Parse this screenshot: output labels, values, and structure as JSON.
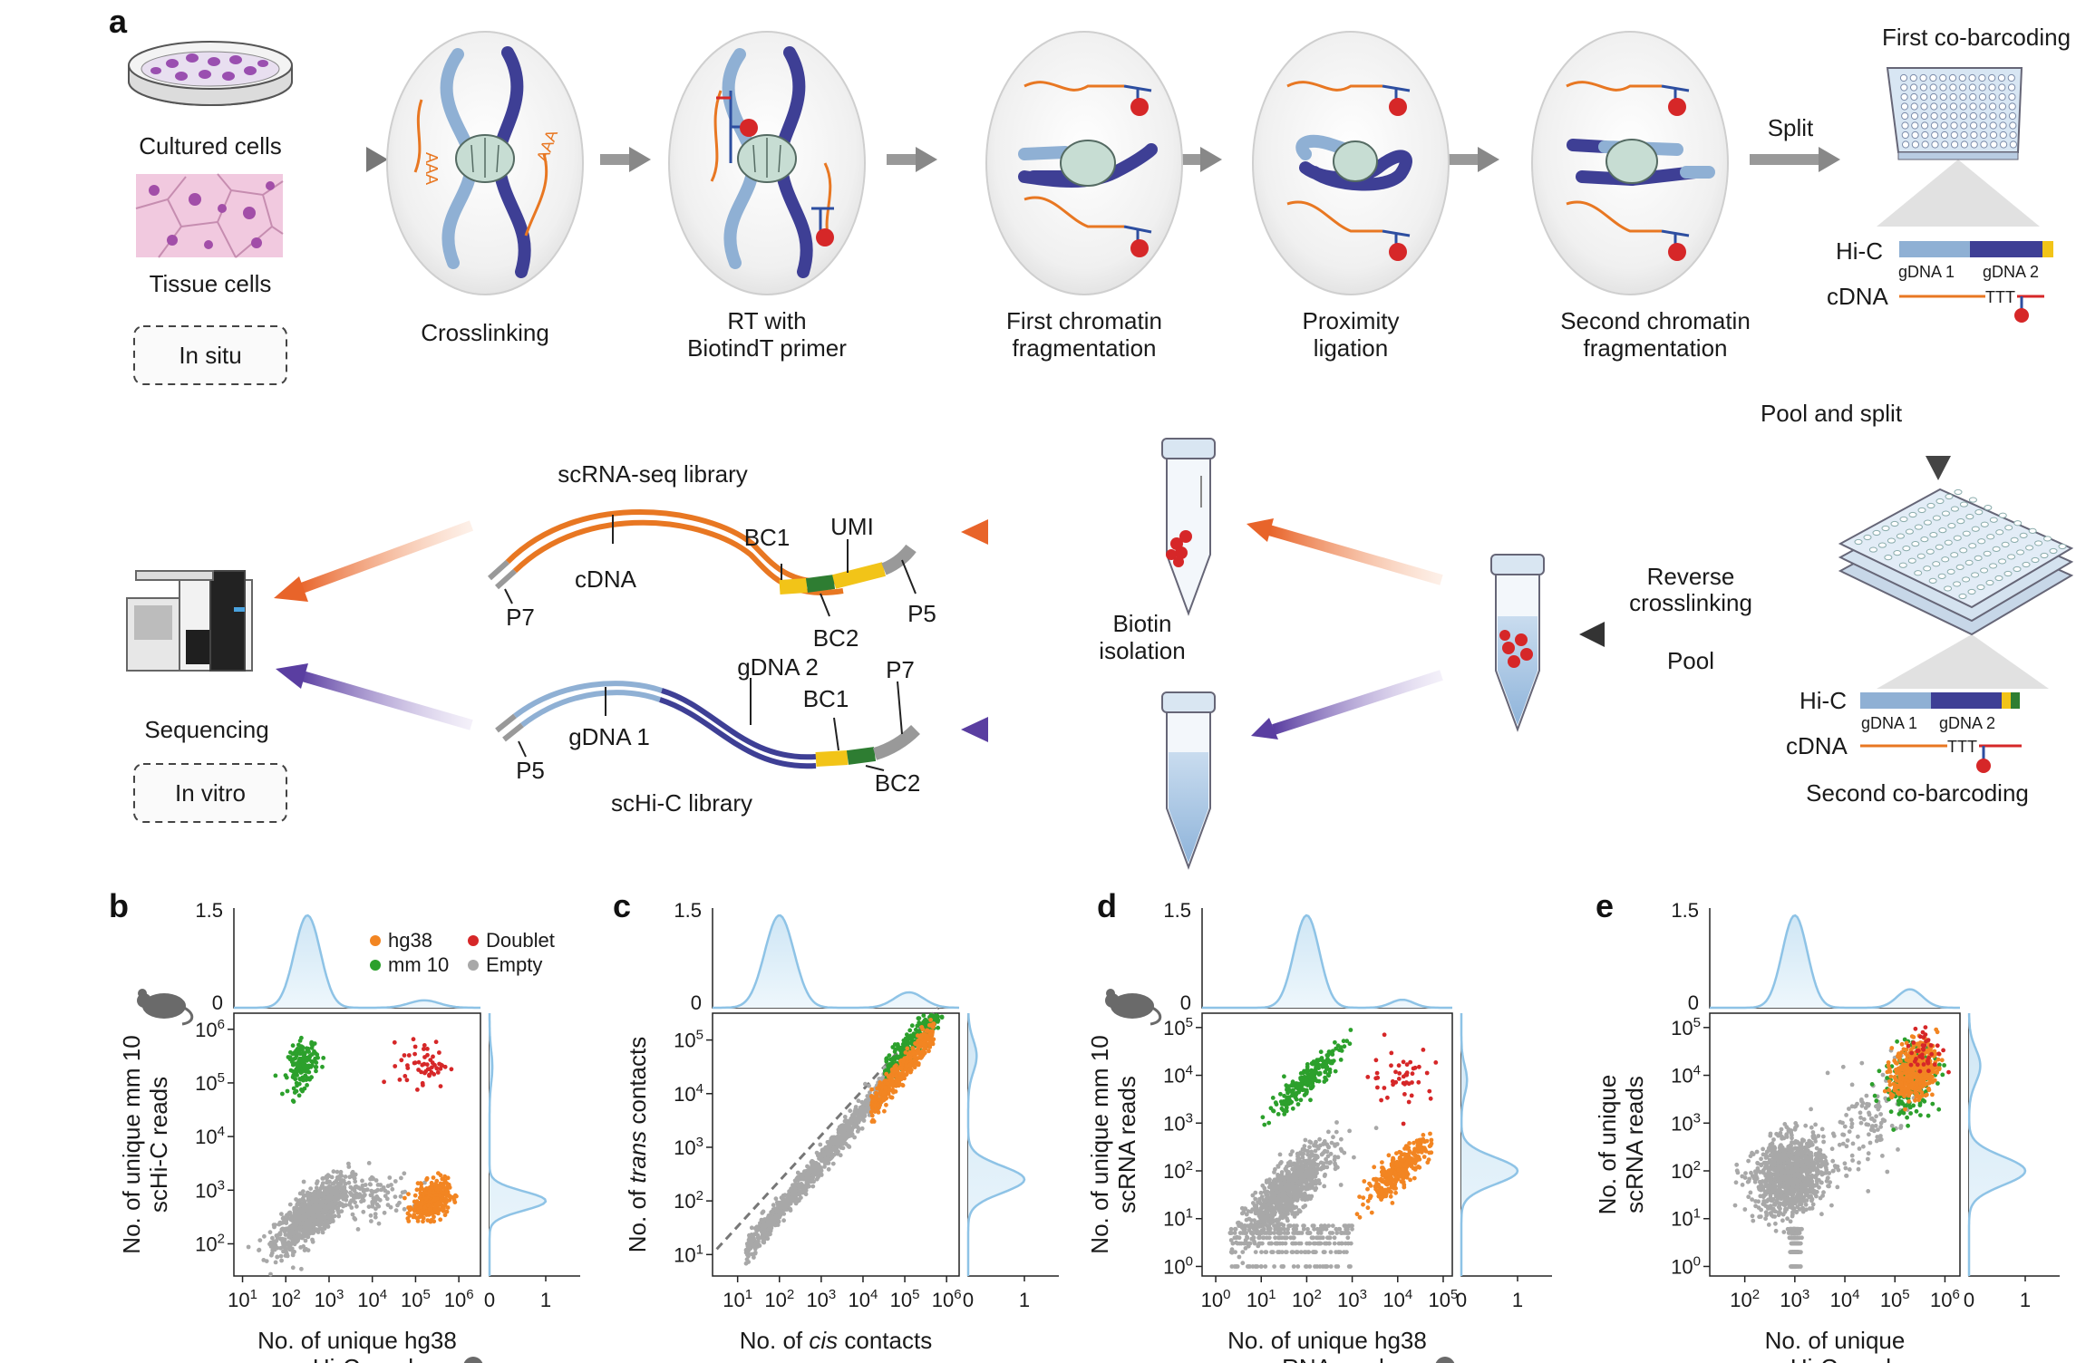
{
  "panel_a": {
    "letter": "a",
    "cultured_cells": "Cultured cells",
    "tissue_cells": "Tissue cells",
    "in_situ": "In situ",
    "steps": {
      "crosslinking": "Crosslinking",
      "rt_line1": "RT with",
      "rt_line2": "BiotindT primer",
      "frag1_line1": "First chromatin",
      "frag1_line2": "fragmentation",
      "lig_line1": "Proximity",
      "lig_line2": "ligation",
      "frag2_line1": "Second chromatin",
      "frag2_line2": "fragmentation"
    },
    "polyA": "AAA",
    "oligo_t": "TTT",
    "split": "Split",
    "first_cobarcoding": "First co-barcoding",
    "hic": "Hi-C",
    "cdna": "cDNA",
    "gdna1": "gDNA 1",
    "gdna2": "gDNA 2",
    "pool_and_split": "Pool and split",
    "reverse_line1": "Reverse",
    "reverse_line2": "crosslinking",
    "pool": "Pool",
    "second_cobarcoding": "Second co-barcoding",
    "biotin_line1": "Biotin",
    "biotin_line2": "isolation",
    "scrna_library": "scRNA-seq library",
    "schic_library": "scHi-C library",
    "bc1": "BC1",
    "bc2": "BC2",
    "umi": "UMI",
    "p5": "P5",
    "p7": "P7",
    "cdna_lib": "cDNA",
    "gdna1_lib": "gDNA 1",
    "gdna2_lib": "gDNA 2",
    "sequencing": "Sequencing",
    "in_vitro": "In vitro"
  },
  "colors": {
    "hg38": "#f28522",
    "mm10": "#2ca02c",
    "doublet": "#d62728",
    "empty": "#a8a8a8",
    "density": "#8ec3e6",
    "orange": "#e87722",
    "purple": "#5a3ea1",
    "light_chrom": "#8fb0d4",
    "dark_chrom": "#3e3f95"
  },
  "legend": {
    "hg38": "hg38",
    "doublet": "Doublet",
    "mm10": "mm 10",
    "empty": "Empty"
  },
  "chart_data": [
    {
      "panel": "b",
      "type": "scatter",
      "xlabel_line1": "No. of unique hg38",
      "xlabel_line2": "scHi-C reads",
      "ylabel_line1": "No. of unique mm 10",
      "ylabel_line2": "scHi-C reads",
      "x_scale": "log10",
      "y_scale": "log10",
      "xlim_log10": [
        0.8,
        6.5
      ],
      "ylim_log10": [
        1.4,
        6.3
      ],
      "x_ticks": [
        "10^1",
        "10^2",
        "10^3",
        "10^4",
        "10^5",
        "10^6"
      ],
      "y_ticks": [
        "10^2",
        "10^3",
        "10^4",
        "10^5",
        "10^6"
      ],
      "top_density_ticks": [
        "0",
        "1.5"
      ],
      "right_density_ticks": [
        "0",
        "1"
      ],
      "clusters": [
        {
          "group": "empty",
          "n": 900,
          "cx_log10": 2.6,
          "cy_log10": 2.55,
          "sx": 0.42,
          "sy": 0.33,
          "rho": 0.75
        },
        {
          "group": "empty",
          "n": 120,
          "cx_log10": 3.9,
          "cy_log10": 2.9,
          "sx": 0.5,
          "sy": 0.2,
          "rho": 0
        },
        {
          "group": "mm10",
          "n": 160,
          "cx_log10": 2.4,
          "cy_log10": 5.35,
          "sx": 0.17,
          "sy": 0.22,
          "rho": 0.3
        },
        {
          "group": "hg38",
          "n": 420,
          "cx_log10": 5.35,
          "cy_log10": 2.8,
          "sx": 0.2,
          "sy": 0.17,
          "rho": 0.3
        },
        {
          "group": "doublet",
          "n": 55,
          "cx_log10": 5.2,
          "cy_log10": 5.35,
          "sx": 0.28,
          "sy": 0.22,
          "rho": 0
        }
      ],
      "top_density_peaks": [
        {
          "pos_log10": 2.5,
          "height": 1.5,
          "sd": 0.3
        },
        {
          "pos_log10": 5.2,
          "height": 0.12,
          "sd": 0.35
        }
      ],
      "right_density_peaks": [
        {
          "pos_log10": 2.8,
          "height": 1.0,
          "sd": 0.18
        },
        {
          "pos_log10": 5.3,
          "height": 0.05,
          "sd": 0.3
        }
      ],
      "icons": {
        "y": "mouse",
        "x": "baby"
      }
    },
    {
      "panel": "c",
      "type": "scatter",
      "xlabel_pre": "No. of ",
      "xlabel_ital": "cis",
      "xlabel_post": " contacts",
      "ylabel_pre": "No. of ",
      "ylabel_ital": "trans",
      "ylabel_post": " contacts",
      "x_scale": "log10",
      "y_scale": "log10",
      "xlim_log10": [
        0.4,
        6.3
      ],
      "ylim_log10": [
        0.6,
        5.5
      ],
      "x_ticks": [
        "10^1",
        "10^2",
        "10^3",
        "10^4",
        "10^5",
        "10^6"
      ],
      "y_ticks": [
        "10^1",
        "10^2",
        "10^3",
        "10^4",
        "10^5"
      ],
      "top_density_ticks": [
        "0",
        "1.5"
      ],
      "right_density_ticks": [
        "0",
        "1"
      ],
      "diagonal": {
        "x_log10": [
          0.5,
          5.8
        ],
        "y_log10": [
          1.1,
          5.6
        ],
        "style": "dashed"
      },
      "clusters": [
        {
          "group": "empty",
          "n": 900,
          "diag": true,
          "x_range_log10": [
            1.2,
            4.6
          ],
          "slope": 0.93,
          "intercept": -0.05,
          "sd": 0.12
        },
        {
          "group": "mm10",
          "n": 260,
          "diag": true,
          "x_range_log10": [
            4.5,
            5.9
          ],
          "slope": 0.93,
          "intercept": 0.15,
          "sd": 0.14
        },
        {
          "group": "hg38",
          "n": 380,
          "diag": true,
          "x_range_log10": [
            4.2,
            5.7
          ],
          "slope": 0.93,
          "intercept": -0.15,
          "sd": 0.13
        }
      ],
      "top_density_peaks": [
        {
          "pos_log10": 2.0,
          "height": 1.5,
          "sd": 0.35
        },
        {
          "pos_log10": 5.1,
          "height": 0.25,
          "sd": 0.35
        }
      ],
      "right_density_peaks": [
        {
          "pos_log10": 2.4,
          "height": 1.0,
          "sd": 0.25
        },
        {
          "pos_log10": 4.7,
          "height": 0.15,
          "sd": 0.3
        }
      ]
    },
    {
      "panel": "d",
      "type": "scatter",
      "xlabel_line1": "No. of unique hg38",
      "xlabel_line2": "scRNA reads",
      "ylabel_line1": "No. of unique mm 10",
      "ylabel_line2": "scRNA reads",
      "x_scale": "log10",
      "y_scale": "log10",
      "xlim_log10": [
        -0.3,
        5.2
      ],
      "ylim_log10": [
        -0.2,
        5.3
      ],
      "x_ticks": [
        "10^0",
        "10^1",
        "10^2",
        "10^3",
        "10^4",
        "10^5"
      ],
      "y_ticks": [
        "10^0",
        "10^1",
        "10^2",
        "10^3",
        "10^4",
        "10^5"
      ],
      "top_density_ticks": [
        "0",
        "1.5"
      ],
      "right_density_ticks": [
        "0",
        "1"
      ],
      "clusters": [
        {
          "group": "empty",
          "n": 900,
          "cx_log10": 1.6,
          "cy_log10": 1.6,
          "sx": 0.45,
          "sy": 0.45,
          "rho": 0.8
        },
        {
          "group": "empty_grid",
          "n": 300,
          "x_range_log10": [
            0.3,
            3.0
          ],
          "y_values_log10": [
            0,
            0.3,
            0.48,
            0.6,
            0.7,
            0.78,
            0.85
          ]
        },
        {
          "group": "mm10",
          "n": 220,
          "cx_log10": 2.0,
          "cy_log10": 3.9,
          "sx": 0.4,
          "sy": 0.38,
          "rho": 0.9
        },
        {
          "group": "hg38",
          "n": 320,
          "cx_log10": 4.0,
          "cy_log10": 2.0,
          "sx": 0.35,
          "sy": 0.33,
          "rho": 0.85
        },
        {
          "group": "doublet",
          "n": 45,
          "cx_log10": 4.1,
          "cy_log10": 4.0,
          "sx": 0.35,
          "sy": 0.3,
          "rho": 0
        }
      ],
      "top_density_peaks": [
        {
          "pos_log10": 2.0,
          "height": 1.5,
          "sd": 0.28
        },
        {
          "pos_log10": 4.1,
          "height": 0.13,
          "sd": 0.25
        }
      ],
      "right_density_peaks": [
        {
          "pos_log10": 2.0,
          "height": 1.0,
          "sd": 0.28
        },
        {
          "pos_log10": 3.9,
          "height": 0.1,
          "sd": 0.3
        }
      ],
      "icons": {
        "y": "mouse",
        "x": "baby"
      }
    },
    {
      "panel": "e",
      "type": "scatter",
      "xlabel_line1": "No. of unique",
      "xlabel_line2": "scHi-C reads",
      "ylabel_line1": "No. of unique",
      "ylabel_line2": "scRNA reads",
      "x_scale": "log10",
      "y_scale": "log10",
      "xlim_log10": [
        1.3,
        6.3
      ],
      "ylim_log10": [
        -0.2,
        5.3
      ],
      "x_ticks": [
        "10^2",
        "10^3",
        "10^4",
        "10^5",
        "10^6"
      ],
      "y_ticks": [
        "10^0",
        "10^1",
        "10^2",
        "10^3",
        "10^4",
        "10^5"
      ],
      "top_density_ticks": [
        "0",
        "1.5"
      ],
      "right_density_ticks": [
        "0",
        "1"
      ],
      "clusters": [
        {
          "group": "empty",
          "n": 1100,
          "cx_log10": 2.9,
          "cy_log10": 1.9,
          "sx": 0.35,
          "sy": 0.4,
          "rho": 0.2
        },
        {
          "group": "empty_stack",
          "n": 200,
          "cx_log10": 3.0,
          "y_values_log10": [
            0,
            0.3,
            0.48,
            0.6,
            0.7,
            0.78
          ]
        },
        {
          "group": "empty",
          "n": 120,
          "cx_log10": 4.6,
          "cy_log10": 3.1,
          "sx": 0.4,
          "sy": 0.6,
          "rho": 0.5
        },
        {
          "group": "mm10",
          "n": 220,
          "cx_log10": 5.3,
          "cy_log10": 3.9,
          "sx": 0.25,
          "sy": 0.35,
          "rho": 0.2
        },
        {
          "group": "hg38",
          "n": 420,
          "cx_log10": 5.4,
          "cy_log10": 4.1,
          "sx": 0.22,
          "sy": 0.3,
          "rho": 0.3
        },
        {
          "group": "doublet",
          "n": 40,
          "cx_log10": 5.6,
          "cy_log10": 4.5,
          "sx": 0.2,
          "sy": 0.25,
          "rho": 0
        }
      ],
      "top_density_peaks": [
        {
          "pos_log10": 3.0,
          "height": 1.5,
          "sd": 0.25
        },
        {
          "pos_log10": 5.3,
          "height": 0.3,
          "sd": 0.25
        }
      ],
      "right_density_peaks": [
        {
          "pos_log10": 2.0,
          "height": 1.0,
          "sd": 0.3
        },
        {
          "pos_log10": 4.2,
          "height": 0.2,
          "sd": 0.35
        }
      ]
    }
  ]
}
